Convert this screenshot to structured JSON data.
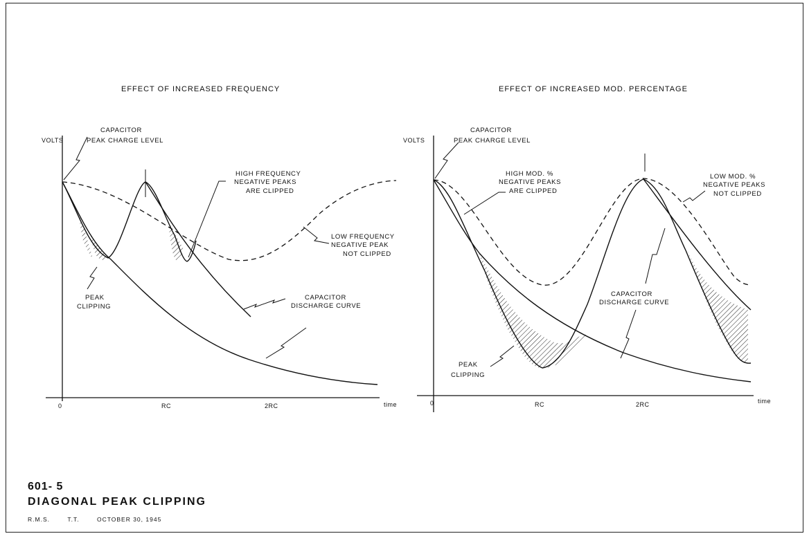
{
  "left_panel": {
    "title": "EFFECT  OF  INCREASED  FREQUENCY",
    "y_label": "VOLTS",
    "x_ticks": [
      "0",
      "RC",
      "2RC",
      "time"
    ],
    "notes": {
      "capacitor": [
        "CAPACITOR",
        "PEAK  CHARGE  LEVEL"
      ],
      "high_freq": [
        "HIGH  FREQUENCY",
        "NEGATIVE  PEAKS",
        "ARE  CLIPPED"
      ],
      "low_freq": [
        "LOW  FREQUENCY",
        "NEGATIVE  PEAK",
        "NOT  CLIPPED"
      ],
      "peak_clipping": [
        "PEAK",
        "CLIPPING"
      ],
      "discharge": [
        "CAPACITOR",
        "DISCHARGE  CURVE"
      ]
    }
  },
  "right_panel": {
    "title": "EFFECT  OF  INCREASED  MOD.  PERCENTAGE",
    "y_label": "VOLTS",
    "x_ticks": [
      "0",
      "RC",
      "2RC",
      "time"
    ],
    "notes": {
      "capacitor": [
        "CAPACITOR",
        "PEAK  CHARGE  LEVEL"
      ],
      "high_mod": [
        "HIGH  MOD.  %",
        "NEGATIVE  PEAKS",
        "ARE  CLIPPED"
      ],
      "low_mod": [
        "LOW  MOD. %",
        "NEGATIVE  PEAKS",
        "NOT  CLIPPED"
      ],
      "discharge": [
        "CAPACITOR",
        "DISCHARGE  CURVE"
      ],
      "peak_clipping": [
        "PEAK",
        "CLIPPING"
      ]
    }
  },
  "footer": {
    "code": "601- 5",
    "title": "DIAGONAL   PEAK   CLIPPING",
    "meta": [
      "R.M.S.",
      "T.T.",
      "OCTOBER  30, 1945"
    ]
  }
}
